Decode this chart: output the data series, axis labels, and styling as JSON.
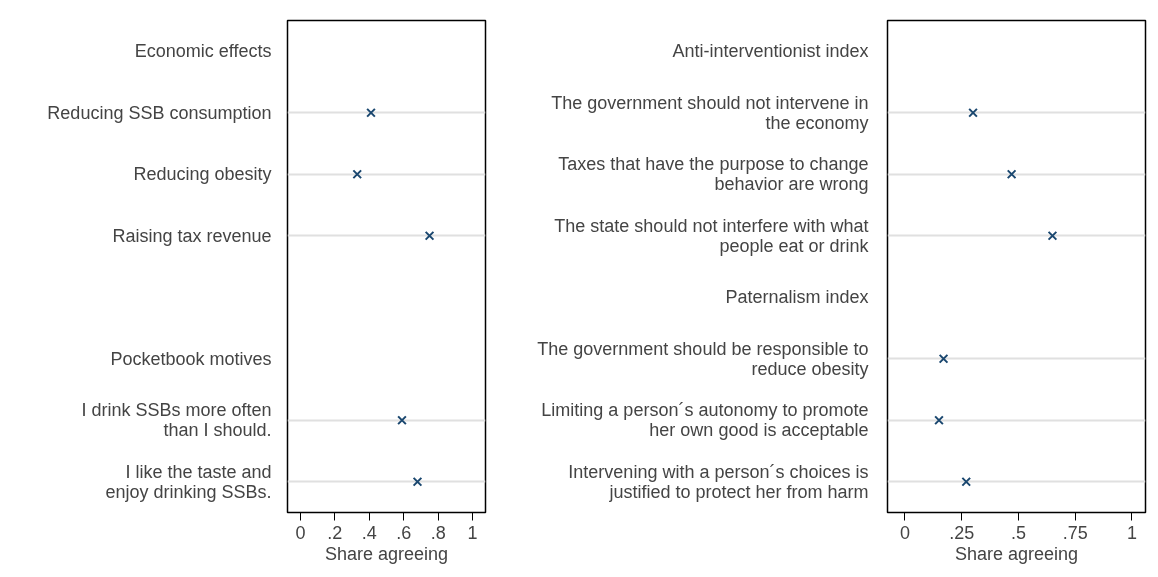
{
  "chart_data": [
    {
      "type": "scatter",
      "orientation": "horizontal",
      "xlabel": "Share agreeing",
      "categories": [
        "Economic effects",
        "Reducing SSB consumption",
        "Reducing obesity",
        "Raising tax revenue",
        null,
        "Pocketbook motives",
        "I drink SSBs more often\nthan I should.",
        "I like the taste and\nenjoy drinking SSBs."
      ],
      "series": [
        {
          "color": "#1a476f",
          "values": [
            null,
            0.41,
            0.33,
            0.75,
            null,
            null,
            0.59,
            0.68
          ]
        }
      ],
      "xlim": [
        -0.075,
        1.075
      ],
      "xticks": [
        {
          "value": 0,
          "label": "0"
        },
        {
          "value": 0.2,
          "label": ".2"
        },
        {
          "value": 0.4,
          "label": ".4"
        },
        {
          "value": 0.6,
          "label": ".6"
        },
        {
          "value": 0.8,
          "label": ".8"
        },
        {
          "value": 1,
          "label": "1"
        }
      ],
      "grid": "y",
      "marker": "cross"
    },
    {
      "type": "scatter",
      "orientation": "horizontal",
      "xlabel": "Share agreeing",
      "categories": [
        "Anti-interventionist index",
        "The government should not intervene in\nthe economy",
        "Taxes that have the purpose to change\nbehavior are wrong",
        "The state should not interfere with what\npeople eat or drink",
        "Paternalism index",
        "The government should be responsible to\nreduce obesity",
        "Limiting a person´s autonomy to promote\nher own good is acceptable",
        "Intervening with a person´s choices is\njustified to protect her from harm"
      ],
      "series": [
        {
          "color": "#1a476f",
          "values": [
            null,
            0.3,
            0.47,
            0.65,
            null,
            0.17,
            0.15,
            0.27
          ]
        }
      ],
      "xlim": [
        -0.077,
        1.06
      ],
      "xticks": [
        {
          "value": 0,
          "label": "0"
        },
        {
          "value": 0.25,
          "label": ".25"
        },
        {
          "value": 0.5,
          "label": ".5"
        },
        {
          "value": 0.75,
          "label": ".75"
        },
        {
          "value": 1,
          "label": "1"
        }
      ],
      "grid": "y",
      "marker": "cross"
    }
  ]
}
